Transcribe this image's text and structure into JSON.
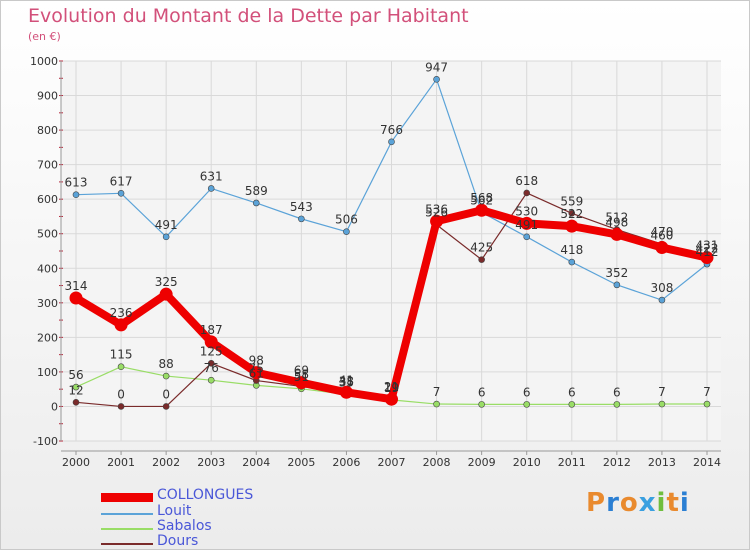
{
  "title": "Evolution du Montant de la Dette par Habitant",
  "subtitle": "(en €)",
  "logo": {
    "text": "Proxiti",
    "letters": [
      "P",
      "r",
      "o",
      "x",
      "i",
      "t",
      "i"
    ],
    "colors": [
      "#e98a2e",
      "#2b7fd3",
      "#e98a2e",
      "#3aa0e0",
      "#6fbe3e",
      "#e98a2e",
      "#2b7fd3"
    ]
  },
  "chart_data": {
    "type": "line",
    "x": [
      "2000",
      "2001",
      "2002",
      "2003",
      "2004",
      "2005",
      "2006",
      "2007",
      "2008",
      "2009",
      "2010",
      "2011",
      "2012",
      "2013",
      "2014"
    ],
    "ylim": [
      -100,
      1000
    ],
    "yticks": [
      "-100",
      "0",
      "100",
      "200",
      "300",
      "400",
      "500",
      "600",
      "700",
      "800",
      "900",
      "1000"
    ],
    "grid": true,
    "legend_position": "bottom-left",
    "series": [
      {
        "name": "COLLONGUES",
        "color": "#ee0000",
        "width": 8,
        "values": [
          314,
          236,
          325,
          187,
          98,
          69,
          41,
          21,
          536,
          568,
          530,
          522,
          498,
          460,
          431
        ],
        "labels": [
          "314",
          "236",
          "325",
          "187",
          "98",
          "69",
          "41",
          "21",
          "536",
          "568",
          "530",
          "522",
          "498",
          "460",
          "431"
        ]
      },
      {
        "name": "Louit",
        "color": "#5ba3d8",
        "width": 1.2,
        "values": [
          613,
          617,
          491,
          631,
          589,
          543,
          506,
          766,
          947,
          562,
          491,
          418,
          352,
          308,
          412
        ],
        "labels": [
          "613",
          "617",
          "491",
          "631",
          "589",
          "543",
          "506",
          "766",
          "947",
          "562",
          "491",
          "418",
          "352",
          "308",
          "412"
        ]
      },
      {
        "name": "Sabalos",
        "color": "#99dd66",
        "width": 1.2,
        "values": [
          56,
          115,
          88,
          76,
          61,
          51,
          35,
          19,
          7,
          6,
          6,
          6,
          6,
          7,
          7
        ],
        "labels": [
          "56",
          "115",
          "88",
          "76",
          "61",
          "51",
          "35",
          "19",
          "7",
          "6",
          "6",
          "6",
          "6",
          "7",
          "7"
        ]
      },
      {
        "name": "Dours",
        "color": "#7a2b2b",
        "width": 1.2,
        "values": [
          12,
          0,
          0,
          125,
          75,
          58,
          38,
          19,
          526,
          425,
          618,
          559,
          512,
          470,
          422
        ],
        "labels": [
          "12",
          "0",
          "0",
          "125",
          "75",
          "58",
          "38",
          "19",
          "526",
          "425",
          "618",
          "559",
          "512",
          "470",
          "422"
        ]
      }
    ]
  }
}
